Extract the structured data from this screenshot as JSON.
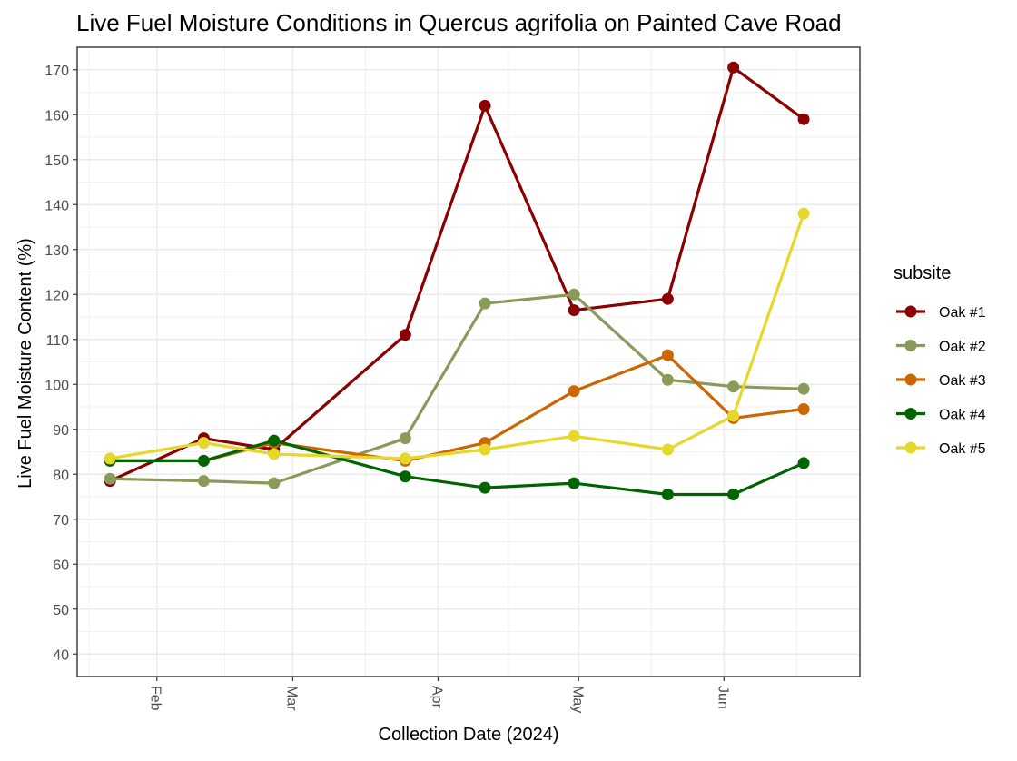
{
  "chart_data": {
    "type": "line",
    "title": "Live Fuel Moisture Conditions in Quercus agrifolia on Painted Cave Road",
    "xlabel": "Collection Date (2024)",
    "ylabel": "Live Fuel Moisture Content (%)",
    "ylim": [
      35,
      175
    ],
    "yticks": [
      40,
      50,
      60,
      70,
      80,
      90,
      100,
      110,
      120,
      130,
      140,
      150,
      160,
      170
    ],
    "xlim": [
      "2024-01-15",
      "2024-06-30"
    ],
    "xticks": [
      {
        "date": "2024-02-01",
        "label": "Feb"
      },
      {
        "date": "2024-03-01",
        "label": "Mar"
      },
      {
        "date": "2024-04-01",
        "label": "Apr"
      },
      {
        "date": "2024-05-01",
        "label": "May"
      },
      {
        "date": "2024-06-01",
        "label": "Jun"
      }
    ],
    "grid": true,
    "legend": {
      "title": "subsite",
      "position": "right"
    },
    "dates": [
      "2024-01-22",
      "2024-02-11",
      "2024-02-26",
      "2024-03-25",
      "2024-04-11",
      "2024-04-30",
      "2024-05-20",
      "2024-06-03",
      "2024-06-18"
    ],
    "series": [
      {
        "name": "Oak #1",
        "color": "#8B0000",
        "values": [
          78.5,
          88,
          85.5,
          111,
          162,
          116.5,
          119,
          170.5,
          159
        ]
      },
      {
        "name": "Oak #2",
        "color": "#8A9A5B",
        "values": [
          79,
          78.5,
          78,
          88,
          118,
          120,
          101,
          99.5,
          99
        ]
      },
      {
        "name": "Oak #3",
        "color": "#CC6600",
        "values": [
          83,
          83,
          87,
          83,
          87,
          98.5,
          106.5,
          92.5,
          94.5
        ]
      },
      {
        "name": "Oak #4",
        "color": "#006400",
        "values": [
          83,
          83,
          87.5,
          79.5,
          77,
          78,
          75.5,
          75.5,
          82.5
        ]
      },
      {
        "name": "Oak #5",
        "color": "#E6D82A",
        "values": [
          83.5,
          87,
          84.5,
          83.5,
          85.5,
          88.5,
          85.5,
          93,
          138
        ]
      }
    ]
  }
}
